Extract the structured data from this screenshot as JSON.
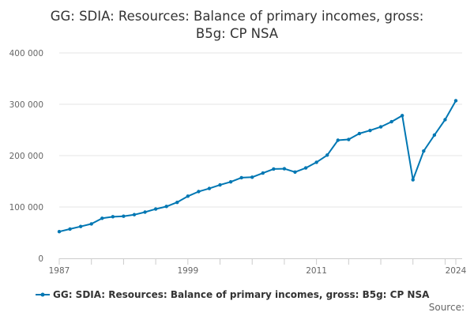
{
  "chart_data": {
    "type": "line",
    "title_lines": [
      "GG: SDIA: Resources: Balance of primary incomes, gross:",
      "B5g: CP NSA"
    ],
    "xlabel": "",
    "ylabel": "",
    "xlim": [
      1987,
      2024
    ],
    "ylim": [
      0,
      400000
    ],
    "y_ticks": [
      0,
      100000,
      200000,
      300000,
      400000
    ],
    "y_tick_labels": [
      "0",
      "100 000",
      "200 000",
      "300 000",
      "400 000"
    ],
    "x_tick_labels": [
      "1987",
      "1999",
      "2011",
      "2024"
    ],
    "x_tick_values": [
      1987,
      1999,
      2011,
      2024
    ],
    "grid": "horizontal",
    "legend_position": "bottom",
    "series": [
      {
        "name": "GG: SDIA: Resources: Balance of primary incomes, gross: B5g: CP NSA",
        "color": "#0077b3",
        "x": [
          1987,
          1988,
          1989,
          1990,
          1991,
          1992,
          1993,
          1994,
          1995,
          1996,
          1997,
          1998,
          1999,
          2000,
          2001,
          2002,
          2003,
          2004,
          2005,
          2006,
          2007,
          2008,
          2009,
          2010,
          2011,
          2012,
          2013,
          2014,
          2015,
          2016,
          2017,
          2018,
          2019,
          2020,
          2021,
          2022,
          2023,
          2024
        ],
        "values": [
          52000,
          57000,
          62000,
          67000,
          78000,
          81000,
          82000,
          85000,
          90000,
          96000,
          101000,
          109000,
          121000,
          130000,
          136000,
          143000,
          149000,
          157000,
          158000,
          166000,
          174000,
          174500,
          168000,
          176000,
          187000,
          201000,
          230000,
          231500,
          243000,
          249000,
          256000,
          266000,
          278000,
          153000,
          209000,
          240000,
          270000,
          307000
        ]
      }
    ],
    "source_label": "Source:"
  }
}
